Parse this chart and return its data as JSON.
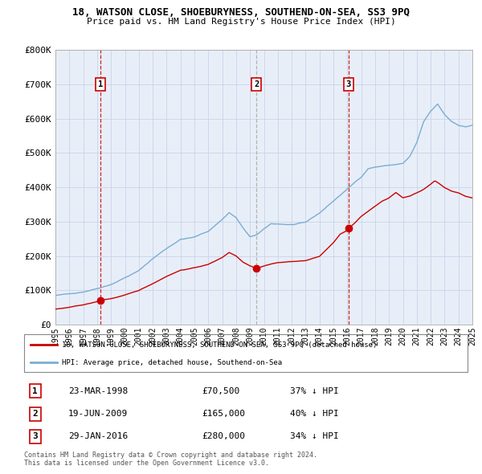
{
  "title1": "18, WATSON CLOSE, SHOEBURYNESS, SOUTHEND-ON-SEA, SS3 9PQ",
  "title2": "Price paid vs. HM Land Registry's House Price Index (HPI)",
  "legend_label_red": "18, WATSON CLOSE, SHOEBURYNESS, SOUTHEND-ON-SEA, SS3 9PQ (detached house)",
  "legend_label_blue": "HPI: Average price, detached house, Southend-on-Sea",
  "footer1": "Contains HM Land Registry data © Crown copyright and database right 2024.",
  "footer2": "This data is licensed under the Open Government Licence v3.0.",
  "red_color": "#cc0000",
  "blue_color": "#7aadd4",
  "chart_bg": "#e8eef8",
  "transactions": [
    {
      "num": "1",
      "date": "23-MAR-1998",
      "price": "£70,500",
      "pct": "37% ↓ HPI",
      "year": 1998.22,
      "value": 70500
    },
    {
      "num": "2",
      "date": "19-JUN-2009",
      "price": "£165,000",
      "pct": "40% ↓ HPI",
      "year": 2009.46,
      "value": 165000
    },
    {
      "num": "3",
      "date": "29-JAN-2016",
      "price": "£280,000",
      "pct": "34% ↓ HPI",
      "year": 2016.08,
      "value": 280000
    }
  ],
  "vline_colors": [
    "#cc0000",
    "#aaaaaa",
    "#cc0000"
  ],
  "ylim": [
    0,
    800000
  ],
  "yticks": [
    0,
    100000,
    200000,
    300000,
    400000,
    500000,
    600000,
    700000,
    800000
  ],
  "ytick_labels": [
    "£0",
    "£100K",
    "£200K",
    "£300K",
    "£400K",
    "£500K",
    "£600K",
    "£700K",
    "£800K"
  ],
  "xtick_years": [
    1995,
    1996,
    1997,
    1998,
    1999,
    2000,
    2001,
    2002,
    2003,
    2004,
    2005,
    2006,
    2007,
    2008,
    2009,
    2010,
    2011,
    2012,
    2013,
    2014,
    2015,
    2016,
    2017,
    2018,
    2019,
    2020,
    2021,
    2022,
    2023,
    2024,
    2025
  ],
  "background_color": "#ffffff",
  "grid_color": "#c8d4e8"
}
